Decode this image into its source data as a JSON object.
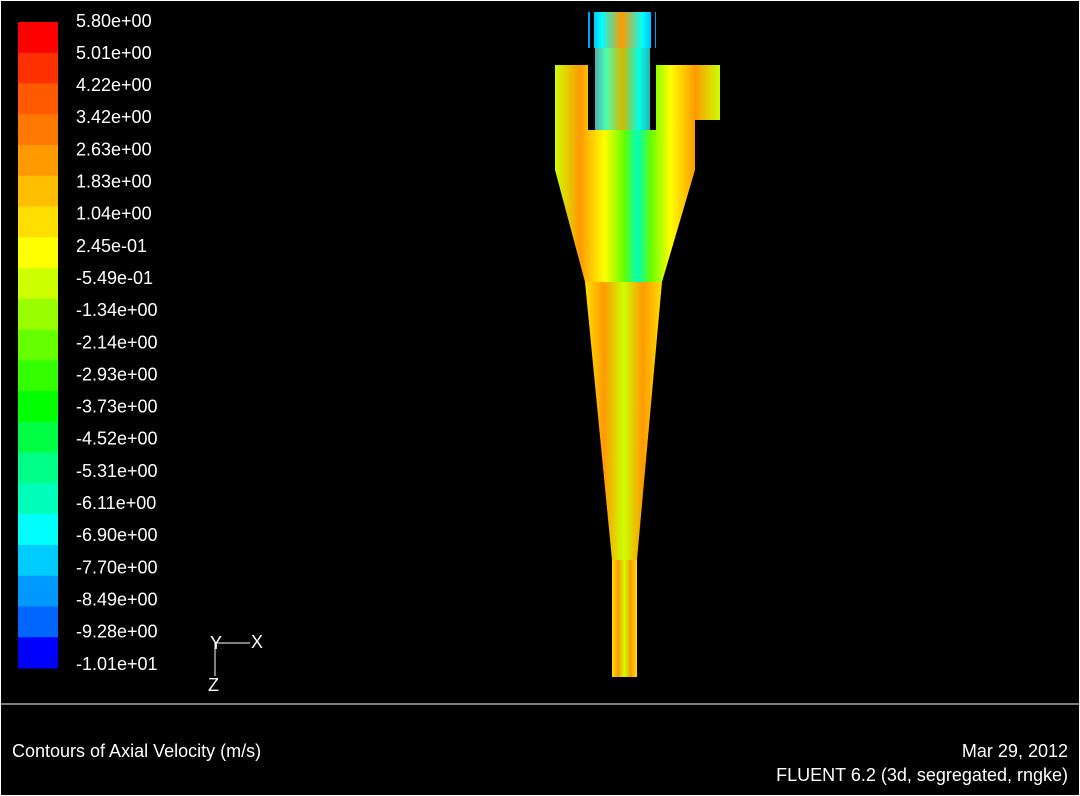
{
  "legend": {
    "labels": [
      "5.80e+00",
      "5.01e+00",
      "4.22e+00",
      "3.42e+00",
      "2.63e+00",
      "1.83e+00",
      "1.04e+00",
      "2.45e-01",
      "-5.49e-01",
      "-1.34e+00",
      "-2.14e+00",
      "-2.93e+00",
      "-3.73e+00",
      "-4.52e+00",
      "-5.31e+00",
      "-6.11e+00",
      "-6.90e+00",
      "-7.70e+00",
      "-8.49e+00",
      "-9.28e+00",
      "-1.01e+01"
    ],
    "colors": [
      "#ff0000",
      "#ff3000",
      "#ff5a00",
      "#ff7800",
      "#ff9a00",
      "#ffbf00",
      "#ffdf00",
      "#ffff00",
      "#ccff00",
      "#99ff00",
      "#66ff00",
      "#33ff00",
      "#00ff00",
      "#00ff44",
      "#00ff88",
      "#00ffbb",
      "#00ffff",
      "#00ccff",
      "#0099ff",
      "#0066ff",
      "#0000ff"
    ]
  },
  "axes": {
    "y": "Y",
    "x": "X",
    "z": "Z"
  },
  "footer": {
    "title": "Contours of Axial Velocity (m/s)",
    "date": "Mar 29, 2012",
    "software": "FLUENT 6.2 (3d, segregated, rngke)"
  }
}
